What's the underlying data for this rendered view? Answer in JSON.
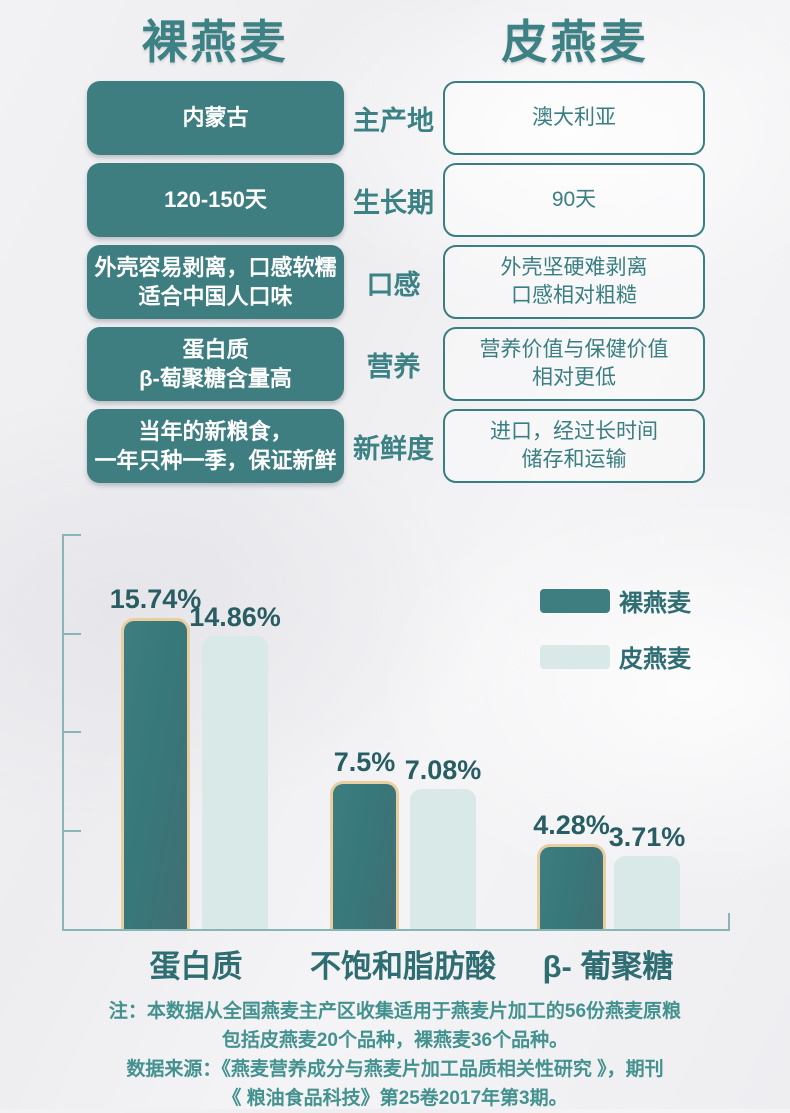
{
  "header": {
    "left_title": "裸燕麦",
    "right_title": "皮燕麦"
  },
  "comparison": {
    "rows": [
      {
        "attribute": "主产地",
        "left": "内蒙古",
        "right": "澳大利亚"
      },
      {
        "attribute": "生长期",
        "left": "120-150天",
        "right": "90天"
      },
      {
        "attribute": "口感",
        "left": "外壳容易剥离，口感软糯\n适合中国人口味",
        "right": "外壳坚硬难剥离\n口感相对粗糙"
      },
      {
        "attribute": "营养",
        "left": "蛋白质\nβ-萄聚糖含量高",
        "right": "营养价值与保健价值\n相对更低"
      },
      {
        "attribute": "新鲜度",
        "left": "当年的新粮食，\n一年只种一季，保证新鲜",
        "right": "进口，经过长时间\n储存和运输"
      }
    ]
  },
  "chart_data": {
    "type": "bar",
    "categories": [
      "蛋白质",
      "不饱和脂肪酸",
      "β- 葡聚糖"
    ],
    "series": [
      {
        "name": "裸燕麦",
        "values": [
          15.74,
          7.5,
          4.28
        ],
        "labels": [
          "15.74%",
          "7.5%",
          "4.28%"
        ],
        "color": "#3e7d80",
        "border_color": "#e9cfa0"
      },
      {
        "name": "皮燕麦",
        "values": [
          14.86,
          7.08,
          3.71
        ],
        "labels": [
          "14.86%",
          "7.08%",
          "3.71%"
        ],
        "color": "#d9e9e7"
      }
    ],
    "ylabel": "",
    "xlabel": "",
    "ylim": [
      0,
      20
    ],
    "tick_step": 5,
    "grid": false,
    "legend_position": "top-right",
    "value_labels": true
  },
  "footer": {
    "lines": [
      "注：本数据从全国燕麦主产区收集适用于燕麦片加工的56份燕麦原粮",
      "包括皮燕麦20个品种，裸燕麦36个品种。",
      "数据来源：《燕麦营养成分与燕麦片加工品质相关性研究 》，期刊",
      "《 粮油食品科技》第25卷2017年第3期。"
    ]
  },
  "colors": {
    "accent_dark": "#3e7d80",
    "accent_light": "#d9e9e7",
    "bar_border": "#e9cfa0",
    "axis": "#8ab5b6",
    "footer_text": "#44928f"
  }
}
